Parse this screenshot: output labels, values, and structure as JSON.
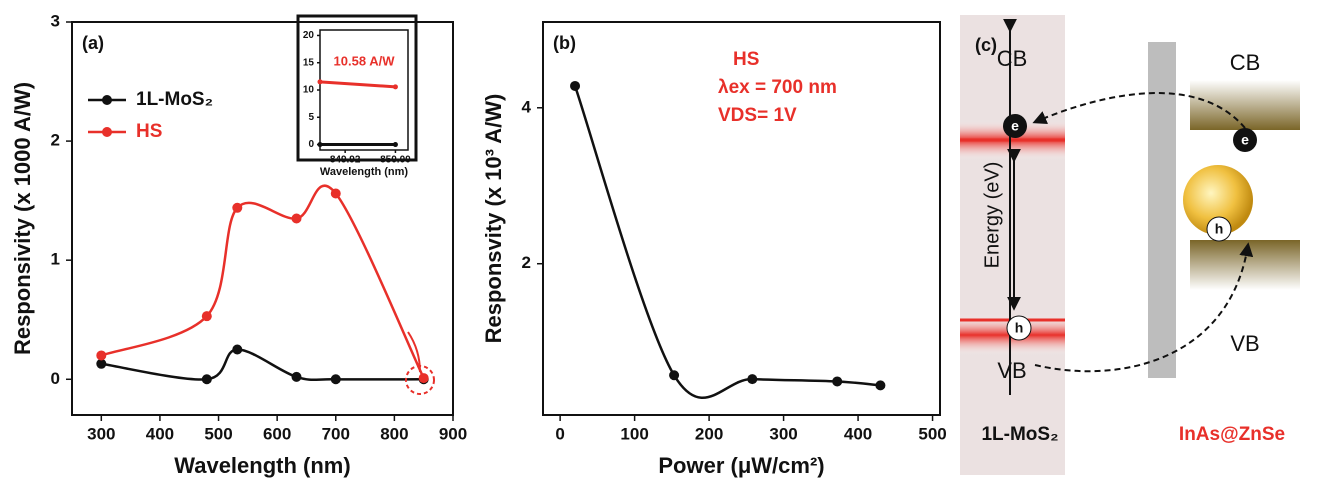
{
  "chart_data": [
    {
      "type": "line",
      "title": "(a)",
      "xlabel": "Wavelength (nm)",
      "ylabel": "Responsivity (x 1000 A/W)",
      "x": [
        300,
        480,
        532,
        633,
        700,
        850
      ],
      "series": [
        {
          "name": "1L-MoS₂",
          "color": "#111111",
          "values": [
            0.13,
            0.0,
            0.25,
            0.02,
            0.0,
            0.0
          ]
        },
        {
          "name": "HS",
          "color": "#e8302a",
          "values": [
            0.2,
            0.53,
            1.44,
            1.35,
            1.56,
            0.01
          ]
        }
      ],
      "xlim": [
        250,
        900
      ],
      "xticks": [
        300,
        400,
        500,
        600,
        700,
        800,
        900
      ],
      "ylim": [
        -0.3,
        3
      ],
      "yticks": [
        0,
        1,
        2,
        3
      ]
    },
    {
      "type": "line",
      "xlabel": "Wavelength (nm)",
      "annotation": "10.58 A/W",
      "x": [
        849.88,
        850
      ],
      "series": [
        {
          "color": "#111111",
          "values": [
            0,
            0
          ]
        },
        {
          "color": "#e8302a",
          "values": [
            11.5,
            10.58
          ]
        }
      ],
      "xlim": [
        849.88,
        850.02
      ],
      "xticks": [
        849.92,
        {
          "value": 850,
          "label": "850.00"
        }
      ],
      "ylim": [
        -1,
        21
      ],
      "yticks": [
        0,
        5,
        10,
        15,
        20
      ]
    },
    {
      "type": "line",
      "title": "(b)",
      "xlabel": "Power (μW/cm²)",
      "ylabel": "Responsvity (x 10³ A/W)",
      "annotations": [
        "HS",
        "λex = 700 nm",
        "VDS= 1V"
      ],
      "x": [
        20,
        153,
        258,
        372,
        430
      ],
      "series": [
        {
          "color": "#111111",
          "values": [
            4.28,
            0.57,
            0.52,
            0.49,
            0.44
          ]
        }
      ],
      "xlim": [
        -23,
        510
      ],
      "xticks": [
        0,
        100,
        200,
        300,
        400,
        500
      ],
      "ylim": [
        0.06,
        5.1
      ],
      "yticks": [
        2,
        4
      ]
    }
  ],
  "diagram": {
    "label": "(c)",
    "bands": [
      "CB",
      "CB",
      "VB",
      "VB"
    ],
    "carriers": [
      "e",
      "e",
      "h",
      "h"
    ],
    "axis_label": "Energy (eV)",
    "materials": [
      "1L-MoS₂",
      "InAs@ZnSe"
    ]
  }
}
